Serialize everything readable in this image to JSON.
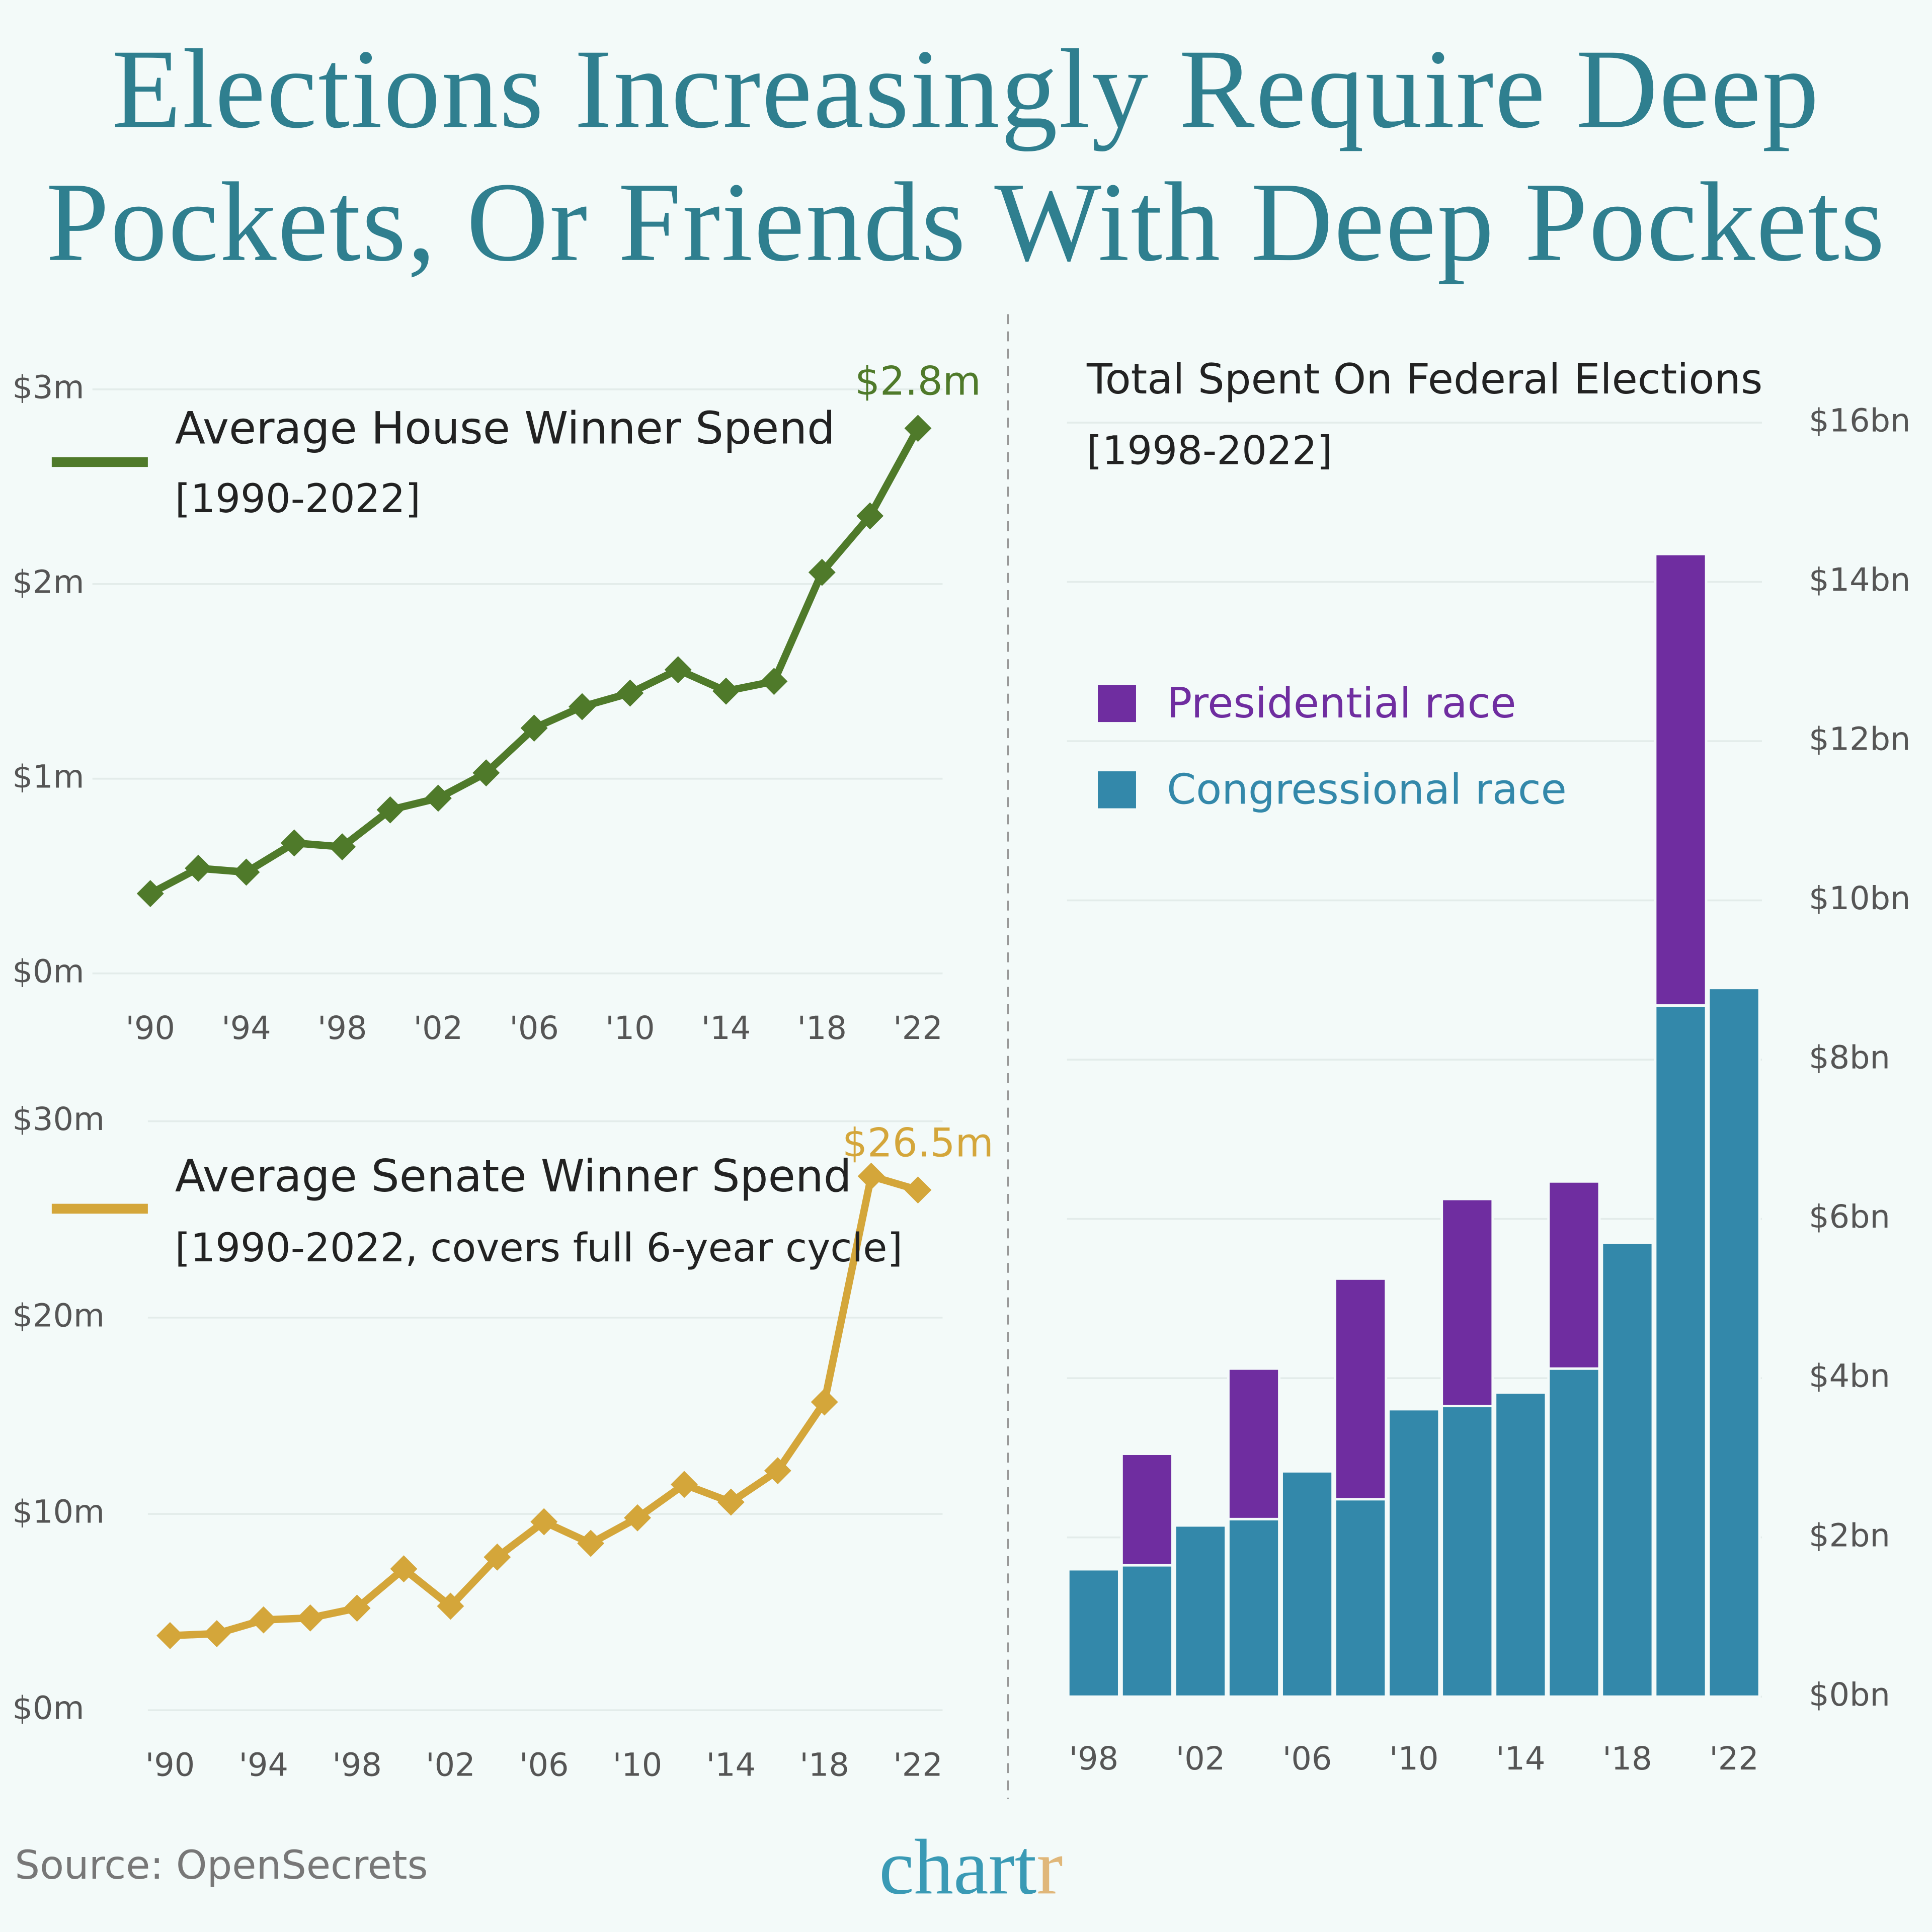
{
  "page": {
    "title": "Elections Increasingly Require Deep Pockets, Or Friends With Deep Pockets",
    "source": "Source: OpenSecrets",
    "logo_main": "chart",
    "logo_accent": "r"
  },
  "chart_data": [
    {
      "type": "line",
      "subtitle": "[1990-2022]",
      "categories": [
        "'90",
        null,
        "'94",
        null,
        "'98",
        null,
        "'02",
        null,
        "'06",
        null,
        "'10",
        null,
        "'14",
        null,
        "'18",
        null,
        "'22"
      ],
      "series": [
        {
          "name": "Average House Winner Spend",
          "color": "#4f7a2a",
          "values": [
            0.41,
            0.54,
            0.52,
            0.67,
            0.65,
            0.84,
            0.9,
            1.03,
            1.26,
            1.37,
            1.44,
            1.56,
            1.45,
            1.5,
            2.06,
            2.35,
            2.8
          ],
          "value_labels": [
            null,
            null,
            null,
            null,
            null,
            null,
            null,
            null,
            null,
            null,
            null,
            null,
            null,
            null,
            null,
            null,
            "$2.8m"
          ]
        }
      ],
      "ylim": [
        0,
        3
      ],
      "yticks": [
        {
          "value": 0,
          "label": "$0m"
        },
        {
          "value": 1,
          "label": "$1m"
        },
        {
          "value": 2,
          "label": "$2m"
        },
        {
          "value": 3,
          "label": "$3m"
        }
      ],
      "grid": true
    },
    {
      "type": "line",
      "subtitle": "[1990-2022, covers full 6-year cycle]",
      "categories": [
        "'90",
        null,
        "'94",
        null,
        "'98",
        null,
        "'02",
        null,
        "'06",
        null,
        "'10",
        null,
        "'14",
        null,
        "'18",
        null,
        "'22"
      ],
      "series": [
        {
          "name": "Average Senate Winner Spend",
          "color": "#d4a63a",
          "values": [
            3.8,
            3.9,
            4.6,
            4.7,
            5.2,
            7.2,
            5.3,
            7.8,
            9.6,
            8.5,
            9.8,
            11.5,
            10.6,
            12.2,
            15.7,
            27.2,
            26.5
          ],
          "value_labels": [
            null,
            null,
            null,
            null,
            null,
            null,
            null,
            null,
            null,
            null,
            null,
            null,
            null,
            null,
            null,
            null,
            "$26.5m"
          ]
        }
      ],
      "ylim": [
        0,
        30
      ],
      "yticks": [
        {
          "value": 0,
          "label": "$0m"
        },
        {
          "value": 10,
          "label": "$10m"
        },
        {
          "value": 20,
          "label": "$20m"
        },
        {
          "value": 30,
          "label": "$30m"
        }
      ],
      "grid": true
    },
    {
      "type": "stacked-bar",
      "title": "Total Spent On Federal Elections",
      "subtitle": "[1998-2022]",
      "categories": [
        "'98",
        null,
        "'02",
        null,
        "'06",
        null,
        "'10",
        null,
        "'14",
        null,
        "'18",
        null,
        "'22"
      ],
      "series": [
        {
          "name": "Congressional race",
          "color": "#3388aa",
          "values": [
            1.6,
            1.65,
            2.15,
            2.23,
            2.83,
            2.48,
            3.61,
            3.65,
            3.82,
            4.12,
            5.7,
            8.68,
            8.9
          ]
        },
        {
          "name": "Presidential race",
          "color": "#6f2da0",
          "values": [
            null,
            1.4,
            null,
            1.89,
            null,
            2.77,
            null,
            2.6,
            null,
            2.35,
            null,
            5.67,
            null
          ]
        }
      ],
      "ylim": [
        0,
        16
      ],
      "yticks": [
        {
          "value": 0,
          "label": "$0bn"
        },
        {
          "value": 2,
          "label": "$2bn"
        },
        {
          "value": 4,
          "label": "$4bn"
        },
        {
          "value": 6,
          "label": "$6bn"
        },
        {
          "value": 8,
          "label": "$8bn"
        },
        {
          "value": 10,
          "label": "$10bn"
        },
        {
          "value": 12,
          "label": "$12bn"
        },
        {
          "value": 14,
          "label": "$14bn"
        },
        {
          "value": 16,
          "label": "$16bn"
        }
      ],
      "grid": true,
      "y_axis_side": "right"
    }
  ]
}
